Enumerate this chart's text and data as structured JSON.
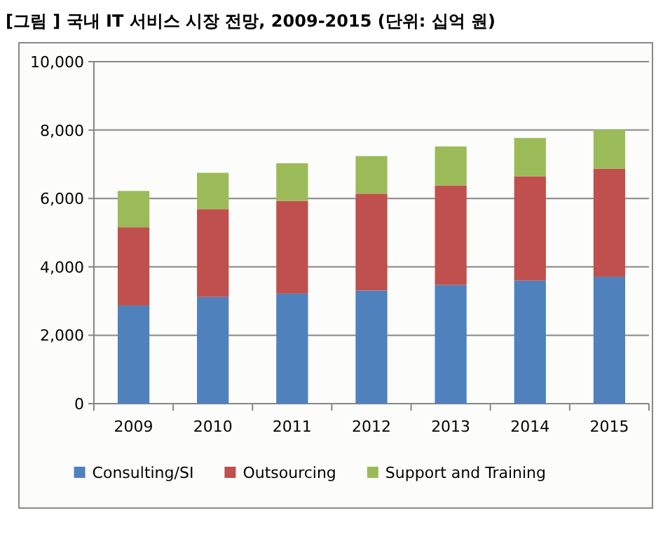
{
  "chart_data": {
    "type": "bar",
    "title": "[그림 ] 국내 IT 서비스 시장 전망, 2009-2015 (단위: 십억 원)",
    "categories": [
      "2009",
      "2010",
      "2011",
      "2012",
      "2013",
      "2014",
      "2015"
    ],
    "stacked": true,
    "series": [
      {
        "name": "Consulting/SI",
        "color": "#4f81bd",
        "values": [
          2870,
          3120,
          3220,
          3310,
          3470,
          3600,
          3710
        ]
      },
      {
        "name": "Outsourcing",
        "color": "#c0504d",
        "values": [
          2290,
          2570,
          2710,
          2830,
          2910,
          3050,
          3160
        ]
      },
      {
        "name": "Support and Training",
        "color": "#9bbb59",
        "values": [
          1060,
          1060,
          1100,
          1100,
          1140,
          1120,
          1140
        ]
      }
    ],
    "ylim": [
      0,
      10000
    ],
    "yticks": [
      {
        "value": 0,
        "label": "0"
      },
      {
        "value": 2000,
        "label": "2,000"
      },
      {
        "value": 4000,
        "label": "4,000"
      },
      {
        "value": 6000,
        "label": "6,000"
      },
      {
        "value": 8000,
        "label": "8,000"
      },
      {
        "value": 10000,
        "label": "10,000"
      }
    ],
    "grid": "y",
    "legend": "bottom"
  }
}
